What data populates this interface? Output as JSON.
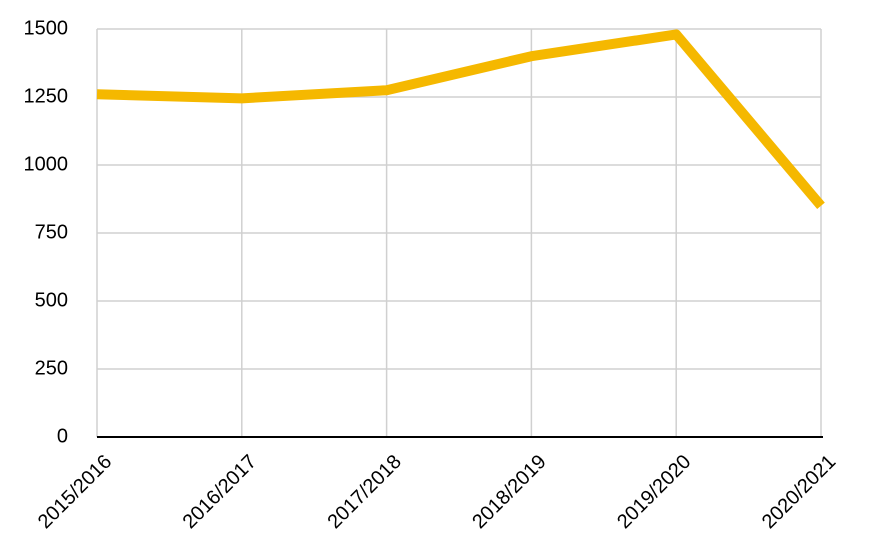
{
  "chart_data": {
    "type": "line",
    "categories": [
      "2015/2016",
      "2016/2017",
      "2017/2018",
      "2018/2019",
      "2019/2020",
      "2020/2021"
    ],
    "series": [
      {
        "color": "#f5b800",
        "values": [
          1260,
          1245,
          1275,
          1400,
          1480,
          850
        ]
      }
    ],
    "ylim": [
      0,
      1500
    ],
    "yticks": [
      0,
      250,
      500,
      750,
      1000,
      1250,
      1500
    ],
    "grid": true
  }
}
